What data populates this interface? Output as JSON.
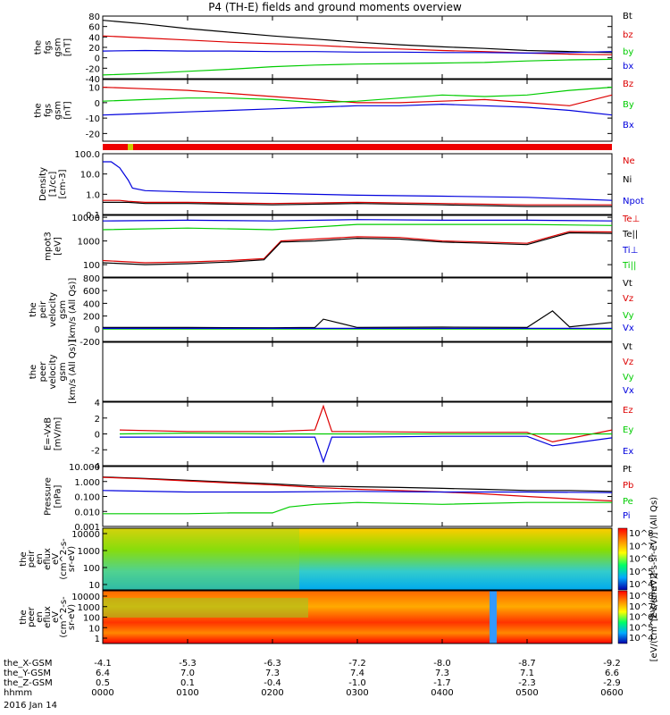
{
  "title": "P4 (TH-E) fields and ground moments overview",
  "date": "2016 Jan 14",
  "chart_data": {
    "type": "line",
    "time_ticks": [
      "0000",
      "0100",
      "0200",
      "0300",
      "0400",
      "0500",
      "0600"
    ],
    "orbit_rows": [
      {
        "label": "the_X-GSM",
        "values": [
          "-4.1",
          "-5.3",
          "-6.3",
          "-7.2",
          "-8.0",
          "-8.7",
          "-9.2"
        ]
      },
      {
        "label": "the_Y-GSM",
        "values": [
          "6.4",
          "7.0",
          "7.3",
          "7.4",
          "7.3",
          "7.1",
          "6.6"
        ]
      },
      {
        "label": "the_Z-GSM",
        "values": [
          "0.5",
          "0.1",
          "-0.4",
          "-1.0",
          "-1.7",
          "-2.3",
          "-2.9"
        ]
      },
      {
        "label": "hhmm",
        "values": [
          "0000",
          "0100",
          "0200",
          "0300",
          "0400",
          "0500",
          "0600"
        ]
      }
    ],
    "panels": [
      {
        "ylabel": [
          "the",
          "fgs",
          "gsm",
          "[nT]"
        ],
        "ylim": [
          -40,
          80
        ],
        "ticks": [
          "80",
          "60",
          "40",
          "20",
          "0",
          "-20",
          "-40"
        ],
        "series": [
          {
            "name": "Bt",
            "color": "#000000",
            "x": [
              0,
              0.5,
              1,
              1.5,
              2,
              2.5,
              3,
              3.5,
              4,
              4.5,
              5,
              5.5,
              6
            ],
            "y": [
              72,
              65,
              56,
              49,
              42,
              36,
              30,
              25,
              21,
              18,
              14,
              12,
              10
            ]
          },
          {
            "name": "bz",
            "color": "#dd0000",
            "x": [
              0,
              0.5,
              1,
              1.5,
              2,
              2.5,
              3,
              3.5,
              4,
              4.5,
              5,
              5.5,
              6
            ],
            "y": [
              42,
              38,
              34,
              30,
              27,
              24,
              20,
              17,
              14,
              12,
              9,
              7,
              6
            ]
          },
          {
            "name": "by",
            "color": "#00cc00",
            "x": [
              0,
              0.5,
              1,
              1.5,
              2,
              2.5,
              3,
              3.5,
              4,
              4.5,
              5,
              5.5,
              6
            ],
            "y": [
              -33,
              -30,
              -26,
              -22,
              -17,
              -14,
              -12,
              -11,
              -10,
              -9,
              -6,
              -4,
              -3
            ]
          },
          {
            "name": "bx",
            "color": "#0000dd",
            "x": [
              0,
              0.5,
              1,
              1.5,
              2,
              2.5,
              3,
              3.5,
              4,
              4.5,
              5,
              5.5,
              6
            ],
            "y": [
              13,
              14,
              13,
              13,
              12,
              12,
              11,
              11,
              10,
              10,
              9,
              10,
              12
            ]
          }
        ]
      },
      {
        "ylabel": [
          "the",
          "fgs",
          "gsm",
          "[nT]"
        ],
        "ylim": [
          -25,
          15
        ],
        "ticks": [
          "10",
          "0",
          "-10",
          "-20"
        ],
        "series": [
          {
            "name": "Bz",
            "color": "#dd0000",
            "x": [
              0,
              0.5,
              1,
              1.5,
              2,
              2.5,
              3,
              3.5,
              4,
              4.5,
              5,
              5.5,
              6
            ],
            "y": [
              10,
              9,
              8,
              6,
              4,
              2,
              0,
              0,
              1,
              2,
              0,
              -2,
              5
            ]
          },
          {
            "name": "By",
            "color": "#00cc00",
            "x": [
              0,
              0.5,
              1,
              1.5,
              2,
              2.5,
              3,
              3.5,
              4,
              4.5,
              5,
              5.5,
              6
            ],
            "y": [
              1,
              2,
              3,
              3,
              2,
              0,
              1,
              3,
              5,
              4,
              5,
              8,
              10
            ]
          },
          {
            "name": "Bx",
            "color": "#0000dd",
            "x": [
              0,
              0.5,
              1,
              1.5,
              2,
              2.5,
              3,
              3.5,
              4,
              4.5,
              5,
              5.5,
              6
            ],
            "y": [
              -8,
              -7,
              -6,
              -5,
              -4,
              -3,
              -2,
              -2,
              -1,
              -2,
              -3,
              -5,
              -8
            ]
          }
        ]
      },
      {
        "ylabel": [
          "Density",
          "[1/cc]",
          "[cm-3]"
        ],
        "ylim": [
          0.1,
          100
        ],
        "log": true,
        "ticks": [
          "100.0",
          "10.0",
          "1.0",
          "0.1"
        ],
        "series": [
          {
            "name": "Ne",
            "color": "#dd0000",
            "x": [
              0,
              0.2,
              0.3,
              0.5,
              1,
              2,
              3,
              4,
              5,
              6
            ],
            "y": [
              0.5,
              0.5,
              0.45,
              0.4,
              0.4,
              0.35,
              0.4,
              0.35,
              0.3,
              0.3
            ]
          },
          {
            "name": "Ni",
            "color": "#000000",
            "x": [
              0,
              0.2,
              0.3,
              0.5,
              1,
              2,
              3,
              4,
              5,
              6
            ],
            "y": [
              0.4,
              0.4,
              0.4,
              0.35,
              0.35,
              0.3,
              0.35,
              0.3,
              0.25,
              0.25
            ]
          },
          {
            "name": "Npot",
            "color": "#0000dd",
            "x": [
              0,
              0.1,
              0.2,
              0.3,
              0.35,
              0.5,
              1,
              2,
              3,
              4,
              5,
              6
            ],
            "y": [
              40,
              40,
              20,
              5,
              2,
              1.5,
              1.3,
              1.1,
              0.9,
              0.8,
              0.7,
              0.5
            ]
          }
        ]
      },
      {
        "ylabel": [
          "mpot3",
          "[eV]"
        ],
        "ylim": [
          30,
          12000
        ],
        "log": true,
        "ticks": [
          "10000",
          "1000",
          "100"
        ],
        "series": [
          {
            "name": "Te⊥",
            "color": "#dd0000",
            "x": [
              0,
              0.5,
              1,
              1.5,
              1.9,
              2.1,
              2.5,
              3,
              3.5,
              4,
              4.5,
              5,
              5.5,
              6
            ],
            "y": [
              150,
              120,
              130,
              150,
              180,
              1000,
              1200,
              1500,
              1400,
              1000,
              900,
              800,
              2500,
              2400
            ]
          },
          {
            "name": "Te||",
            "color": "#000000",
            "x": [
              0,
              0.5,
              1,
              1.5,
              1.9,
              2.1,
              2.5,
              3,
              3.5,
              4,
              4.5,
              5,
              5.5,
              6
            ],
            "y": [
              120,
              100,
              110,
              130,
              160,
              900,
              1000,
              1300,
              1200,
              900,
              800,
              700,
              2200,
              2100
            ]
          },
          {
            "name": "Ti⊥",
            "color": "#0000dd",
            "x": [
              0,
              1,
              2,
              3,
              4,
              5,
              6
            ],
            "y": [
              7000,
              7500,
              7000,
              8000,
              7500,
              7500,
              7000
            ]
          },
          {
            "name": "Ti||",
            "color": "#00cc00",
            "x": [
              0,
              1,
              2,
              3,
              4,
              5,
              6
            ],
            "y": [
              3000,
              3500,
              3000,
              5000,
              5000,
              5000,
              4500
            ]
          }
        ]
      },
      {
        "ylabel": [
          "the",
          "peir",
          "velocity",
          "gsm",
          "[km/s (All Qs)]"
        ],
        "ylim": [
          -200,
          800
        ],
        "ticks": [
          "800",
          "600",
          "400",
          "200",
          "0",
          "-200"
        ],
        "series": [
          {
            "name": "Vt",
            "color": "#000000",
            "x": [
              0,
              1,
              2,
              2.5,
              2.6,
              3,
              4,
              5,
              5.3,
              5.5,
              6
            ],
            "y": [
              20,
              20,
              15,
              20,
              150,
              20,
              25,
              20,
              280,
              30,
              100
            ]
          },
          {
            "name": "Vz",
            "color": "#dd0000",
            "x": [
              0,
              1,
              2,
              3,
              4,
              5,
              6
            ],
            "y": [
              0,
              0,
              0,
              0,
              0,
              0,
              0
            ]
          },
          {
            "name": "Vy",
            "color": "#00cc00",
            "x": [
              0,
              1,
              2,
              3,
              4,
              5,
              6
            ],
            "y": [
              -5,
              -5,
              -5,
              -5,
              -5,
              -5,
              -5
            ]
          },
          {
            "name": "Vx",
            "color": "#0000dd",
            "x": [
              0,
              1,
              2,
              3,
              4,
              5,
              6
            ],
            "y": [
              5,
              5,
              5,
              5,
              5,
              5,
              5
            ]
          }
        ]
      },
      {
        "ylabel": [
          "the",
          "peer",
          "velocity",
          "gsm",
          "[km/s (All Qs)]"
        ],
        "ylim": [
          0,
          1
        ],
        "ticks": [],
        "series": [
          {
            "name": "Vt",
            "color": "#000000",
            "x": [],
            "y": []
          },
          {
            "name": "Vz",
            "color": "#dd0000",
            "x": [],
            "y": []
          },
          {
            "name": "Vy",
            "color": "#00cc00",
            "x": [],
            "y": []
          },
          {
            "name": "Vx",
            "color": "#0000dd",
            "x": [],
            "y": []
          }
        ]
      },
      {
        "ylabel": [
          "E=-VxB",
          "[mV/m]"
        ],
        "ylim": [
          -4,
          4
        ],
        "ticks": [
          "4",
          "2",
          "0",
          "-2",
          "-4"
        ],
        "series": [
          {
            "name": "Ez",
            "color": "#dd0000",
            "x": [
              0.2,
              1,
              2,
              2.5,
              2.6,
              2.7,
              3,
              4,
              5,
              5.3,
              6
            ],
            "y": [
              0.5,
              0.3,
              0.3,
              0.5,
              3.5,
              0.3,
              0.3,
              0.2,
              0.2,
              -1,
              0.5
            ]
          },
          {
            "name": "Ey",
            "color": "#00cc00",
            "x": [
              0.2,
              1,
              2,
              3,
              4,
              5,
              6
            ],
            "y": [
              0,
              0.1,
              0,
              0,
              0,
              0,
              0
            ]
          },
          {
            "name": "Ex",
            "color": "#0000dd",
            "x": [
              0.2,
              1,
              2,
              2.5,
              2.6,
              2.7,
              3,
              4,
              5,
              5.3,
              6
            ],
            "y": [
              -0.4,
              -0.4,
              -0.4,
              -0.4,
              -3.5,
              -0.4,
              -0.4,
              -0.3,
              -0.3,
              -1.5,
              -0.5
            ]
          }
        ]
      },
      {
        "ylabel": [
          "Pressure",
          "[nPa]"
        ],
        "ylim": [
          0.001,
          10
        ],
        "log": true,
        "ticks": [
          "10.000",
          "1.000",
          "0.100",
          "0.010",
          "0.001"
        ],
        "series": [
          {
            "name": "Pt",
            "color": "#000000",
            "x": [
              0,
              0.5,
              1,
              1.5,
              2,
              2.5,
              3,
              3.5,
              4,
              4.5,
              5,
              5.5,
              6
            ],
            "y": [
              2,
              1.6,
              1.2,
              0.9,
              0.7,
              0.5,
              0.45,
              0.4,
              0.35,
              0.3,
              0.25,
              0.25,
              0.22
            ]
          },
          {
            "name": "Pb",
            "color": "#dd0000",
            "x": [
              0,
              0.5,
              1,
              1.5,
              2,
              2.5,
              3,
              3.5,
              4,
              4.5,
              5,
              5.5,
              6
            ],
            "y": [
              1.9,
              1.5,
              1.1,
              0.8,
              0.6,
              0.4,
              0.3,
              0.25,
              0.2,
              0.15,
              0.1,
              0.07,
              0.05
            ]
          },
          {
            "name": "Pe",
            "color": "#00cc00",
            "x": [
              0,
              0.5,
              1,
              1.5,
              2,
              2.2,
              2.5,
              3,
              4,
              5,
              6
            ],
            "y": [
              0.007,
              0.007,
              0.007,
              0.008,
              0.008,
              0.02,
              0.03,
              0.04,
              0.03,
              0.04,
              0.04
            ]
          },
          {
            "name": "Pi",
            "color": "#0000dd",
            "x": [
              0,
              1,
              2,
              3,
              4,
              5,
              6
            ],
            "y": [
              0.25,
              0.2,
              0.2,
              0.22,
              0.2,
              0.2,
              0.18
            ]
          }
        ]
      }
    ],
    "spectrograms": [
      {
        "ylabel": [
          "the",
          "peir",
          "en",
          "eflux",
          "eV",
          "(cm^2-s-",
          "sr-eV)"
        ],
        "ticks": [
          "10000",
          "1000",
          "100",
          "10"
        ],
        "colorbar_ticks": [
          "10^8",
          "10^7",
          "10^6",
          "10^5",
          "10^4"
        ],
        "colorbar_label": "[eV/(cm^2-s-sr-eV)] (All Qs)"
      },
      {
        "ylabel": [
          "the",
          "peer",
          "en",
          "eflux",
          "eV",
          "(cm^2-s-",
          "sr-eV)"
        ],
        "ticks": [
          "10000",
          "1000",
          "100",
          "10",
          "1"
        ],
        "colorbar_ticks": [
          "10^8",
          "10^7",
          "10^6",
          "10^5",
          "10^4"
        ],
        "colorbar_label": "[eV/(cm^2-s-sr-eV)]"
      }
    ]
  }
}
